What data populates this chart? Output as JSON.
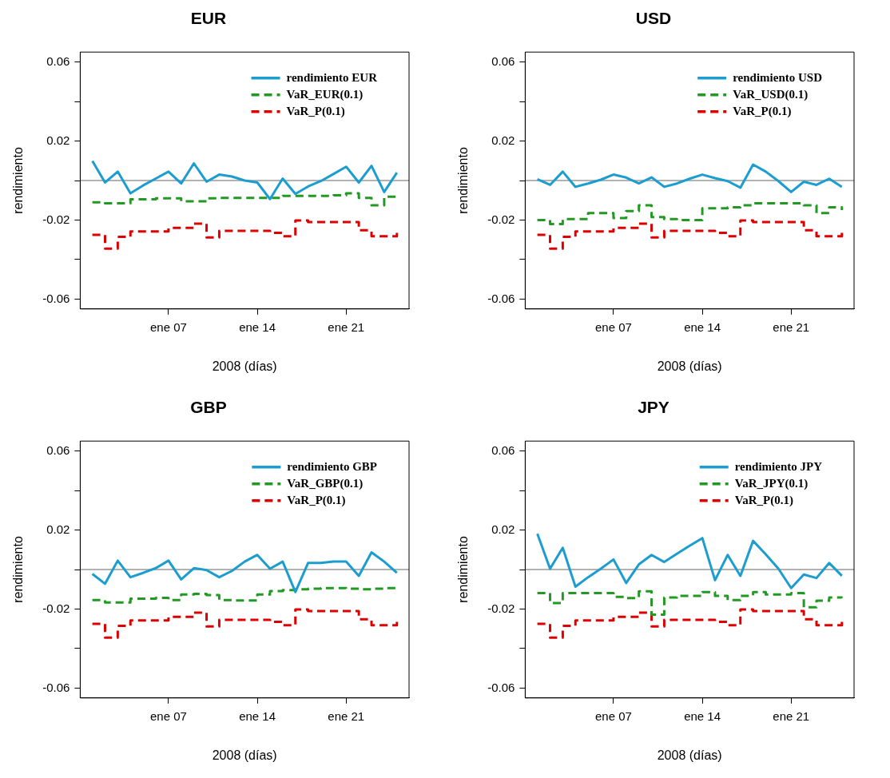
{
  "chart_data": [
    {
      "type": "line",
      "title": "EUR",
      "xlabel": "2008 (días)",
      "ylabel": "rendimiento",
      "x": [
        "2008-01-01",
        "2008-01-02",
        "2008-01-03",
        "2008-01-04",
        "2008-01-05",
        "2008-01-06",
        "2008-01-07",
        "2008-01-08",
        "2008-01-09",
        "2008-01-10",
        "2008-01-11",
        "2008-01-12",
        "2008-01-13",
        "2008-01-14",
        "2008-01-15",
        "2008-01-16",
        "2008-01-17",
        "2008-01-18",
        "2008-01-19",
        "2008-01-20",
        "2008-01-21",
        "2008-01-22",
        "2008-01-23",
        "2008-01-24",
        "2008-01-25"
      ],
      "xlim": [
        "2007-12-31T01:00",
        "2008-01-25T23:00"
      ],
      "xticks": [
        {
          "value": "2008-01-07",
          "label": "ene 07"
        },
        {
          "value": "2008-01-14",
          "label": "ene 14"
        },
        {
          "value": "2008-01-21",
          "label": "ene 21"
        }
      ],
      "ylim": [
        -0.065,
        0.065
      ],
      "yticks": [
        -0.06,
        {
          "value": -0.04,
          "label": null
        },
        -0.02,
        {
          "value": 0,
          "label": null
        },
        0.02,
        {
          "value": 0.04,
          "label": null
        },
        0.06
      ],
      "legend": "top right",
      "grid": false,
      "ref_lines": [
        {
          "axis": "y",
          "value": 0,
          "color": "#999999"
        }
      ],
      "series": [
        {
          "name": "rendimiento EUR",
          "type": "line",
          "color": "#1b9dd0",
          "line_style": "solid",
          "values": [
            0.0099,
            -0.001,
            0.0045,
            -0.0065,
            -0.0025,
            0.001,
            0.0045,
            -0.0015,
            0.0087,
            -0.0006,
            0.003,
            0.002,
            0,
            -0.001,
            -0.0094,
            0.001,
            -0.0068,
            -0.003,
            -0.0003,
            0.0033,
            0.007,
            -0.001,
            0.0074,
            -0.0058,
            0.004
          ]
        },
        {
          "name": "VaR_EUR(0.1)",
          "type": "step",
          "color": "#229922",
          "line_style": "dashed",
          "values": [
            -0.011,
            -0.0115,
            -0.0115,
            -0.0095,
            -0.0095,
            -0.009,
            -0.009,
            -0.0105,
            -0.0105,
            -0.009,
            -0.0088,
            -0.0088,
            -0.0088,
            -0.0088,
            -0.0088,
            -0.0078,
            -0.0078,
            -0.0078,
            -0.0078,
            -0.0075,
            -0.0065,
            -0.0088,
            -0.0125,
            -0.0082,
            -0.009
          ]
        },
        {
          "name": "VaR_P(0.1)",
          "type": "step",
          "color": "#dd0000",
          "line_style": "dashed",
          "values": [
            -0.0275,
            -0.0345,
            -0.0285,
            -0.0258,
            -0.0258,
            -0.0258,
            -0.024,
            -0.024,
            -0.0218,
            -0.0288,
            -0.0255,
            -0.0255,
            -0.0255,
            -0.0255,
            -0.0265,
            -0.0282,
            -0.0202,
            -0.021,
            -0.021,
            -0.021,
            -0.021,
            -0.0252,
            -0.0282,
            -0.0282,
            -0.0255
          ]
        }
      ]
    },
    {
      "type": "line",
      "title": "USD",
      "xlabel": "2008 (días)",
      "ylabel": "rendimiento",
      "x": [
        "2008-01-01",
        "2008-01-02",
        "2008-01-03",
        "2008-01-04",
        "2008-01-05",
        "2008-01-06",
        "2008-01-07",
        "2008-01-08",
        "2008-01-09",
        "2008-01-10",
        "2008-01-11",
        "2008-01-12",
        "2008-01-13",
        "2008-01-14",
        "2008-01-15",
        "2008-01-16",
        "2008-01-17",
        "2008-01-18",
        "2008-01-19",
        "2008-01-20",
        "2008-01-21",
        "2008-01-22",
        "2008-01-23",
        "2008-01-24",
        "2008-01-25"
      ],
      "xlim": [
        "2007-12-31T01:00",
        "2008-01-25T23:00"
      ],
      "xticks": [
        {
          "value": "2008-01-07",
          "label": "ene 07"
        },
        {
          "value": "2008-01-14",
          "label": "ene 14"
        },
        {
          "value": "2008-01-21",
          "label": "ene 21"
        }
      ],
      "ylim": [
        -0.065,
        0.065
      ],
      "yticks": [
        -0.06,
        {
          "value": -0.04,
          "label": null
        },
        -0.02,
        {
          "value": 0,
          "label": null
        },
        0.02,
        {
          "value": 0.04,
          "label": null
        },
        0.06
      ],
      "legend": "top right",
      "grid": false,
      "ref_lines": [
        {
          "axis": "y",
          "value": 0,
          "color": "#999999"
        }
      ],
      "series": [
        {
          "name": "rendimiento USD",
          "type": "line",
          "color": "#1b9dd0",
          "line_style": "solid",
          "values": [
            0.0007,
            -0.0022,
            0.0045,
            -0.0032,
            -0.0015,
            0.0004,
            0.003,
            0.0015,
            -0.0015,
            0.0016,
            -0.0032,
            -0.0015,
            0.0009,
            0.003,
            0.0012,
            -0.0003,
            -0.0036,
            0.0081,
            0.0045,
            -0.0003,
            -0.0058,
            -0.0006,
            -0.0022,
            0.0009,
            -0.0032
          ]
        },
        {
          "name": "VaR_USD(0.1)",
          "type": "step",
          "color": "#229922",
          "line_style": "dashed",
          "values": [
            -0.02,
            -0.022,
            -0.0195,
            -0.0195,
            -0.0165,
            -0.0165,
            -0.019,
            -0.0155,
            -0.0125,
            -0.0185,
            -0.0195,
            -0.02,
            -0.02,
            -0.014,
            -0.014,
            -0.0135,
            -0.0125,
            -0.0115,
            -0.0115,
            -0.0115,
            -0.0115,
            -0.0125,
            -0.0165,
            -0.0135,
            -0.015
          ]
        },
        {
          "name": "VaR_P(0.1)",
          "type": "step",
          "color": "#dd0000",
          "line_style": "dashed",
          "values": [
            -0.0275,
            -0.0345,
            -0.0285,
            -0.0258,
            -0.0258,
            -0.0258,
            -0.024,
            -0.024,
            -0.0218,
            -0.0288,
            -0.0255,
            -0.0255,
            -0.0255,
            -0.0255,
            -0.0265,
            -0.0282,
            -0.0202,
            -0.021,
            -0.021,
            -0.021,
            -0.021,
            -0.0252,
            -0.0282,
            -0.0282,
            -0.0255
          ]
        }
      ]
    },
    {
      "type": "line",
      "title": "GBP",
      "xlabel": "2008 (días)",
      "ylabel": "rendimiento",
      "x": [
        "2008-01-01",
        "2008-01-02",
        "2008-01-03",
        "2008-01-04",
        "2008-01-05",
        "2008-01-06",
        "2008-01-07",
        "2008-01-08",
        "2008-01-09",
        "2008-01-10",
        "2008-01-11",
        "2008-01-12",
        "2008-01-13",
        "2008-01-14",
        "2008-01-15",
        "2008-01-16",
        "2008-01-17",
        "2008-01-18",
        "2008-01-19",
        "2008-01-20",
        "2008-01-21",
        "2008-01-22",
        "2008-01-23",
        "2008-01-24",
        "2008-01-25"
      ],
      "xlim": [
        "2007-12-31T01:00",
        "2008-01-25T23:00"
      ],
      "xticks": [
        {
          "value": "2008-01-07",
          "label": "ene 07"
        },
        {
          "value": "2008-01-14",
          "label": "ene 14"
        },
        {
          "value": "2008-01-21",
          "label": "ene 21"
        }
      ],
      "ylim": [
        -0.065,
        0.065
      ],
      "yticks": [
        -0.06,
        {
          "value": -0.04,
          "label": null
        },
        -0.02,
        {
          "value": 0,
          "label": null
        },
        0.02,
        {
          "value": 0.04,
          "label": null
        },
        0.06
      ],
      "legend": "top right",
      "grid": false,
      "ref_lines": [
        {
          "axis": "y",
          "value": 0,
          "color": "#999999"
        }
      ],
      "series": [
        {
          "name": "rendimiento GBP",
          "type": "line",
          "color": "#1b9dd0",
          "line_style": "solid",
          "values": [
            -0.0022,
            -0.0072,
            0.0045,
            -0.0039,
            -0.0017,
            0.0007,
            0.0045,
            -0.005,
            0.0007,
            -0.0003,
            -0.0039,
            -0.0007,
            0.004,
            0.0074,
            0.0004,
            0.004,
            -0.0114,
            0.0033,
            0.0033,
            0.004,
            0.004,
            -0.0032,
            0.0087,
            0.004,
            -0.0017
          ]
        },
        {
          "name": "VaR_GBP(0.1)",
          "type": "step",
          "color": "#229922",
          "line_style": "dashed",
          "values": [
            -0.0155,
            -0.0167,
            -0.0167,
            -0.0148,
            -0.0148,
            -0.0143,
            -0.0155,
            -0.0126,
            -0.0123,
            -0.0129,
            -0.0155,
            -0.0157,
            -0.0157,
            -0.0126,
            -0.0109,
            -0.0104,
            -0.01,
            -0.0097,
            -0.0094,
            -0.0094,
            -0.0097,
            -0.01,
            -0.0097,
            -0.0094,
            -0.0086
          ]
        },
        {
          "name": "VaR_P(0.1)",
          "type": "step",
          "color": "#dd0000",
          "line_style": "dashed",
          "values": [
            -0.0275,
            -0.0345,
            -0.0285,
            -0.0258,
            -0.0258,
            -0.0258,
            -0.024,
            -0.024,
            -0.0218,
            -0.0288,
            -0.0255,
            -0.0255,
            -0.0255,
            -0.0255,
            -0.0265,
            -0.0282,
            -0.0202,
            -0.021,
            -0.021,
            -0.021,
            -0.021,
            -0.0252,
            -0.0282,
            -0.0282,
            -0.0255
          ]
        }
      ]
    },
    {
      "type": "line",
      "title": "JPY",
      "xlabel": "2008 (días)",
      "ylabel": "rendimiento",
      "x": [
        "2008-01-01",
        "2008-01-02",
        "2008-01-03",
        "2008-01-04",
        "2008-01-05",
        "2008-01-06",
        "2008-01-07",
        "2008-01-08",
        "2008-01-09",
        "2008-01-10",
        "2008-01-11",
        "2008-01-12",
        "2008-01-13",
        "2008-01-14",
        "2008-01-15",
        "2008-01-16",
        "2008-01-17",
        "2008-01-18",
        "2008-01-19",
        "2008-01-20",
        "2008-01-21",
        "2008-01-22",
        "2008-01-23",
        "2008-01-24",
        "2008-01-25"
      ],
      "xlim": [
        "2007-12-31T01:00",
        "2008-01-25T23:00"
      ],
      "xticks": [
        {
          "value": "2008-01-07",
          "label": "ene 07"
        },
        {
          "value": "2008-01-14",
          "label": "ene 14"
        },
        {
          "value": "2008-01-21",
          "label": "ene 21"
        }
      ],
      "ylim": [
        -0.065,
        0.065
      ],
      "yticks": [
        -0.06,
        {
          "value": -0.04,
          "label": null
        },
        -0.02,
        {
          "value": 0,
          "label": null
        },
        0.02,
        {
          "value": 0.04,
          "label": null
        },
        0.06
      ],
      "legend": "top right",
      "grid": false,
      "ref_lines": [
        {
          "axis": "y",
          "value": 0,
          "color": "#999999"
        }
      ],
      "series": [
        {
          "name": "rendimiento JPY",
          "type": "line",
          "color": "#1b9dd0",
          "line_style": "solid",
          "values": [
            0.0181,
            0.0004,
            0.011,
            -0.0087,
            -0.0039,
            0.0004,
            0.0051,
            -0.0068,
            0.0026,
            0.0074,
            0.0038,
            0.008,
            0.012,
            0.0159,
            -0.0054,
            0.0074,
            -0.0032,
            0.0145,
            0.0077,
            0.0004,
            -0.0094,
            -0.0025,
            -0.0043,
            0.0033,
            -0.0032
          ]
        },
        {
          "name": "VaR_JPY(0.1)",
          "type": "step",
          "color": "#229922",
          "line_style": "dashed",
          "values": [
            -0.0119,
            -0.017,
            -0.0119,
            -0.0119,
            -0.0119,
            -0.0119,
            -0.0138,
            -0.0145,
            -0.011,
            -0.0228,
            -0.0141,
            -0.0133,
            -0.0133,
            -0.0114,
            -0.0133,
            -0.0155,
            -0.0133,
            -0.0114,
            -0.0126,
            -0.0126,
            -0.0119,
            -0.0191,
            -0.0158,
            -0.0141,
            -0.0143
          ]
        },
        {
          "name": "VaR_P(0.1)",
          "type": "step",
          "color": "#dd0000",
          "line_style": "dashed",
          "values": [
            -0.0275,
            -0.0345,
            -0.0285,
            -0.0258,
            -0.0258,
            -0.0258,
            -0.024,
            -0.024,
            -0.0218,
            -0.0288,
            -0.0255,
            -0.0255,
            -0.0255,
            -0.0255,
            -0.0265,
            -0.0282,
            -0.0202,
            -0.021,
            -0.021,
            -0.021,
            -0.021,
            -0.0252,
            -0.0282,
            -0.0282,
            -0.0255
          ]
        }
      ]
    }
  ]
}
